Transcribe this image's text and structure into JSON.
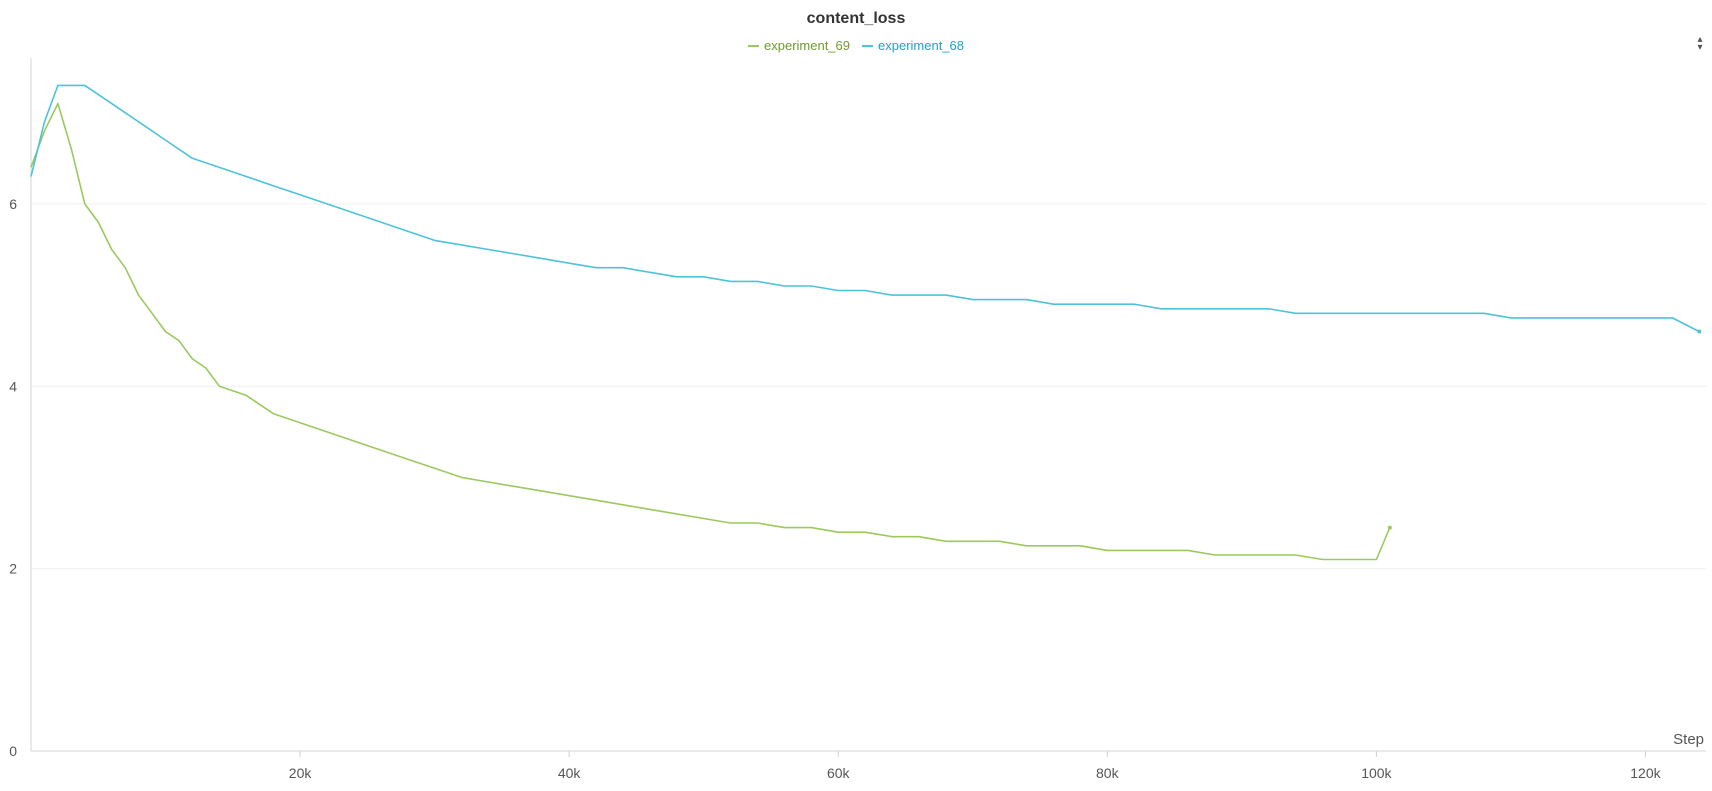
{
  "chart_data": {
    "type": "line",
    "title": "content_loss",
    "xlabel": "Step",
    "ylabel": "",
    "xlim": [
      0,
      124500
    ],
    "ylim": [
      0,
      7.6
    ],
    "x_ticks": [
      {
        "value": 20000,
        "label": "20k"
      },
      {
        "value": 40000,
        "label": "40k"
      },
      {
        "value": 60000,
        "label": "60k"
      },
      {
        "value": 80000,
        "label": "80k"
      },
      {
        "value": 100000,
        "label": "100k"
      },
      {
        "value": 120000,
        "label": "120k"
      }
    ],
    "y_ticks": [
      {
        "value": 0,
        "label": "0"
      },
      {
        "value": 2,
        "label": "2"
      },
      {
        "value": 4,
        "label": "4"
      },
      {
        "value": 6,
        "label": "6"
      }
    ],
    "grid": "horizontal",
    "legend_position": "top-center",
    "series": [
      {
        "name": "experiment_69",
        "color": "#9cc95e",
        "points": [
          [
            0,
            6.4
          ],
          [
            1000,
            6.8
          ],
          [
            2000,
            7.1
          ],
          [
            3000,
            6.6
          ],
          [
            4000,
            6.0
          ],
          [
            5000,
            5.8
          ],
          [
            6000,
            5.5
          ],
          [
            7000,
            5.3
          ],
          [
            8000,
            5.0
          ],
          [
            9000,
            4.8
          ],
          [
            10000,
            4.6
          ],
          [
            11000,
            4.5
          ],
          [
            12000,
            4.3
          ],
          [
            13000,
            4.2
          ],
          [
            14000,
            4.0
          ],
          [
            16000,
            3.9
          ],
          [
            18000,
            3.7
          ],
          [
            20000,
            3.6
          ],
          [
            22000,
            3.5
          ],
          [
            24000,
            3.4
          ],
          [
            26000,
            3.3
          ],
          [
            28000,
            3.2
          ],
          [
            30000,
            3.1
          ],
          [
            32000,
            3.0
          ],
          [
            34000,
            2.95
          ],
          [
            36000,
            2.9
          ],
          [
            38000,
            2.85
          ],
          [
            40000,
            2.8
          ],
          [
            42000,
            2.75
          ],
          [
            44000,
            2.7
          ],
          [
            46000,
            2.65
          ],
          [
            48000,
            2.6
          ],
          [
            50000,
            2.55
          ],
          [
            52000,
            2.5
          ],
          [
            54000,
            2.5
          ],
          [
            56000,
            2.45
          ],
          [
            58000,
            2.45
          ],
          [
            60000,
            2.4
          ],
          [
            62000,
            2.4
          ],
          [
            64000,
            2.35
          ],
          [
            66000,
            2.35
          ],
          [
            68000,
            2.3
          ],
          [
            70000,
            2.3
          ],
          [
            72000,
            2.3
          ],
          [
            74000,
            2.25
          ],
          [
            76000,
            2.25
          ],
          [
            78000,
            2.25
          ],
          [
            80000,
            2.2
          ],
          [
            82000,
            2.2
          ],
          [
            84000,
            2.2
          ],
          [
            86000,
            2.2
          ],
          [
            88000,
            2.15
          ],
          [
            90000,
            2.15
          ],
          [
            92000,
            2.15
          ],
          [
            94000,
            2.15
          ],
          [
            96000,
            2.1
          ],
          [
            98000,
            2.1
          ],
          [
            100000,
            2.1
          ],
          [
            101000,
            2.45
          ]
        ]
      },
      {
        "name": "experiment_68",
        "color": "#4dc3d9",
        "points": [
          [
            0,
            6.3
          ],
          [
            1000,
            6.9
          ],
          [
            2000,
            7.3
          ],
          [
            4000,
            7.3
          ],
          [
            6000,
            7.1
          ],
          [
            8000,
            6.9
          ],
          [
            10000,
            6.7
          ],
          [
            12000,
            6.5
          ],
          [
            14000,
            6.4
          ],
          [
            16000,
            6.3
          ],
          [
            18000,
            6.2
          ],
          [
            20000,
            6.1
          ],
          [
            22000,
            6.0
          ],
          [
            24000,
            5.9
          ],
          [
            26000,
            5.8
          ],
          [
            28000,
            5.7
          ],
          [
            30000,
            5.6
          ],
          [
            32000,
            5.55
          ],
          [
            34000,
            5.5
          ],
          [
            36000,
            5.45
          ],
          [
            38000,
            5.4
          ],
          [
            40000,
            5.35
          ],
          [
            42000,
            5.3
          ],
          [
            44000,
            5.3
          ],
          [
            46000,
            5.25
          ],
          [
            48000,
            5.2
          ],
          [
            50000,
            5.2
          ],
          [
            52000,
            5.15
          ],
          [
            54000,
            5.15
          ],
          [
            56000,
            5.1
          ],
          [
            58000,
            5.1
          ],
          [
            60000,
            5.05
          ],
          [
            62000,
            5.05
          ],
          [
            64000,
            5.0
          ],
          [
            66000,
            5.0
          ],
          [
            68000,
            5.0
          ],
          [
            70000,
            4.95
          ],
          [
            72000,
            4.95
          ],
          [
            74000,
            4.95
          ],
          [
            76000,
            4.9
          ],
          [
            78000,
            4.9
          ],
          [
            80000,
            4.9
          ],
          [
            82000,
            4.9
          ],
          [
            84000,
            4.85
          ],
          [
            86000,
            4.85
          ],
          [
            88000,
            4.85
          ],
          [
            90000,
            4.85
          ],
          [
            92000,
            4.85
          ],
          [
            94000,
            4.8
          ],
          [
            96000,
            4.8
          ],
          [
            98000,
            4.8
          ],
          [
            100000,
            4.8
          ],
          [
            102000,
            4.8
          ],
          [
            104000,
            4.8
          ],
          [
            106000,
            4.8
          ],
          [
            108000,
            4.8
          ],
          [
            110000,
            4.75
          ],
          [
            112000,
            4.75
          ],
          [
            114000,
            4.75
          ],
          [
            116000,
            4.75
          ],
          [
            118000,
            4.75
          ],
          [
            120000,
            4.75
          ],
          [
            122000,
            4.75
          ],
          [
            124000,
            4.6
          ]
        ]
      }
    ]
  },
  "controls": {
    "sort_toggle_icon": "sort-arrows-icon"
  }
}
